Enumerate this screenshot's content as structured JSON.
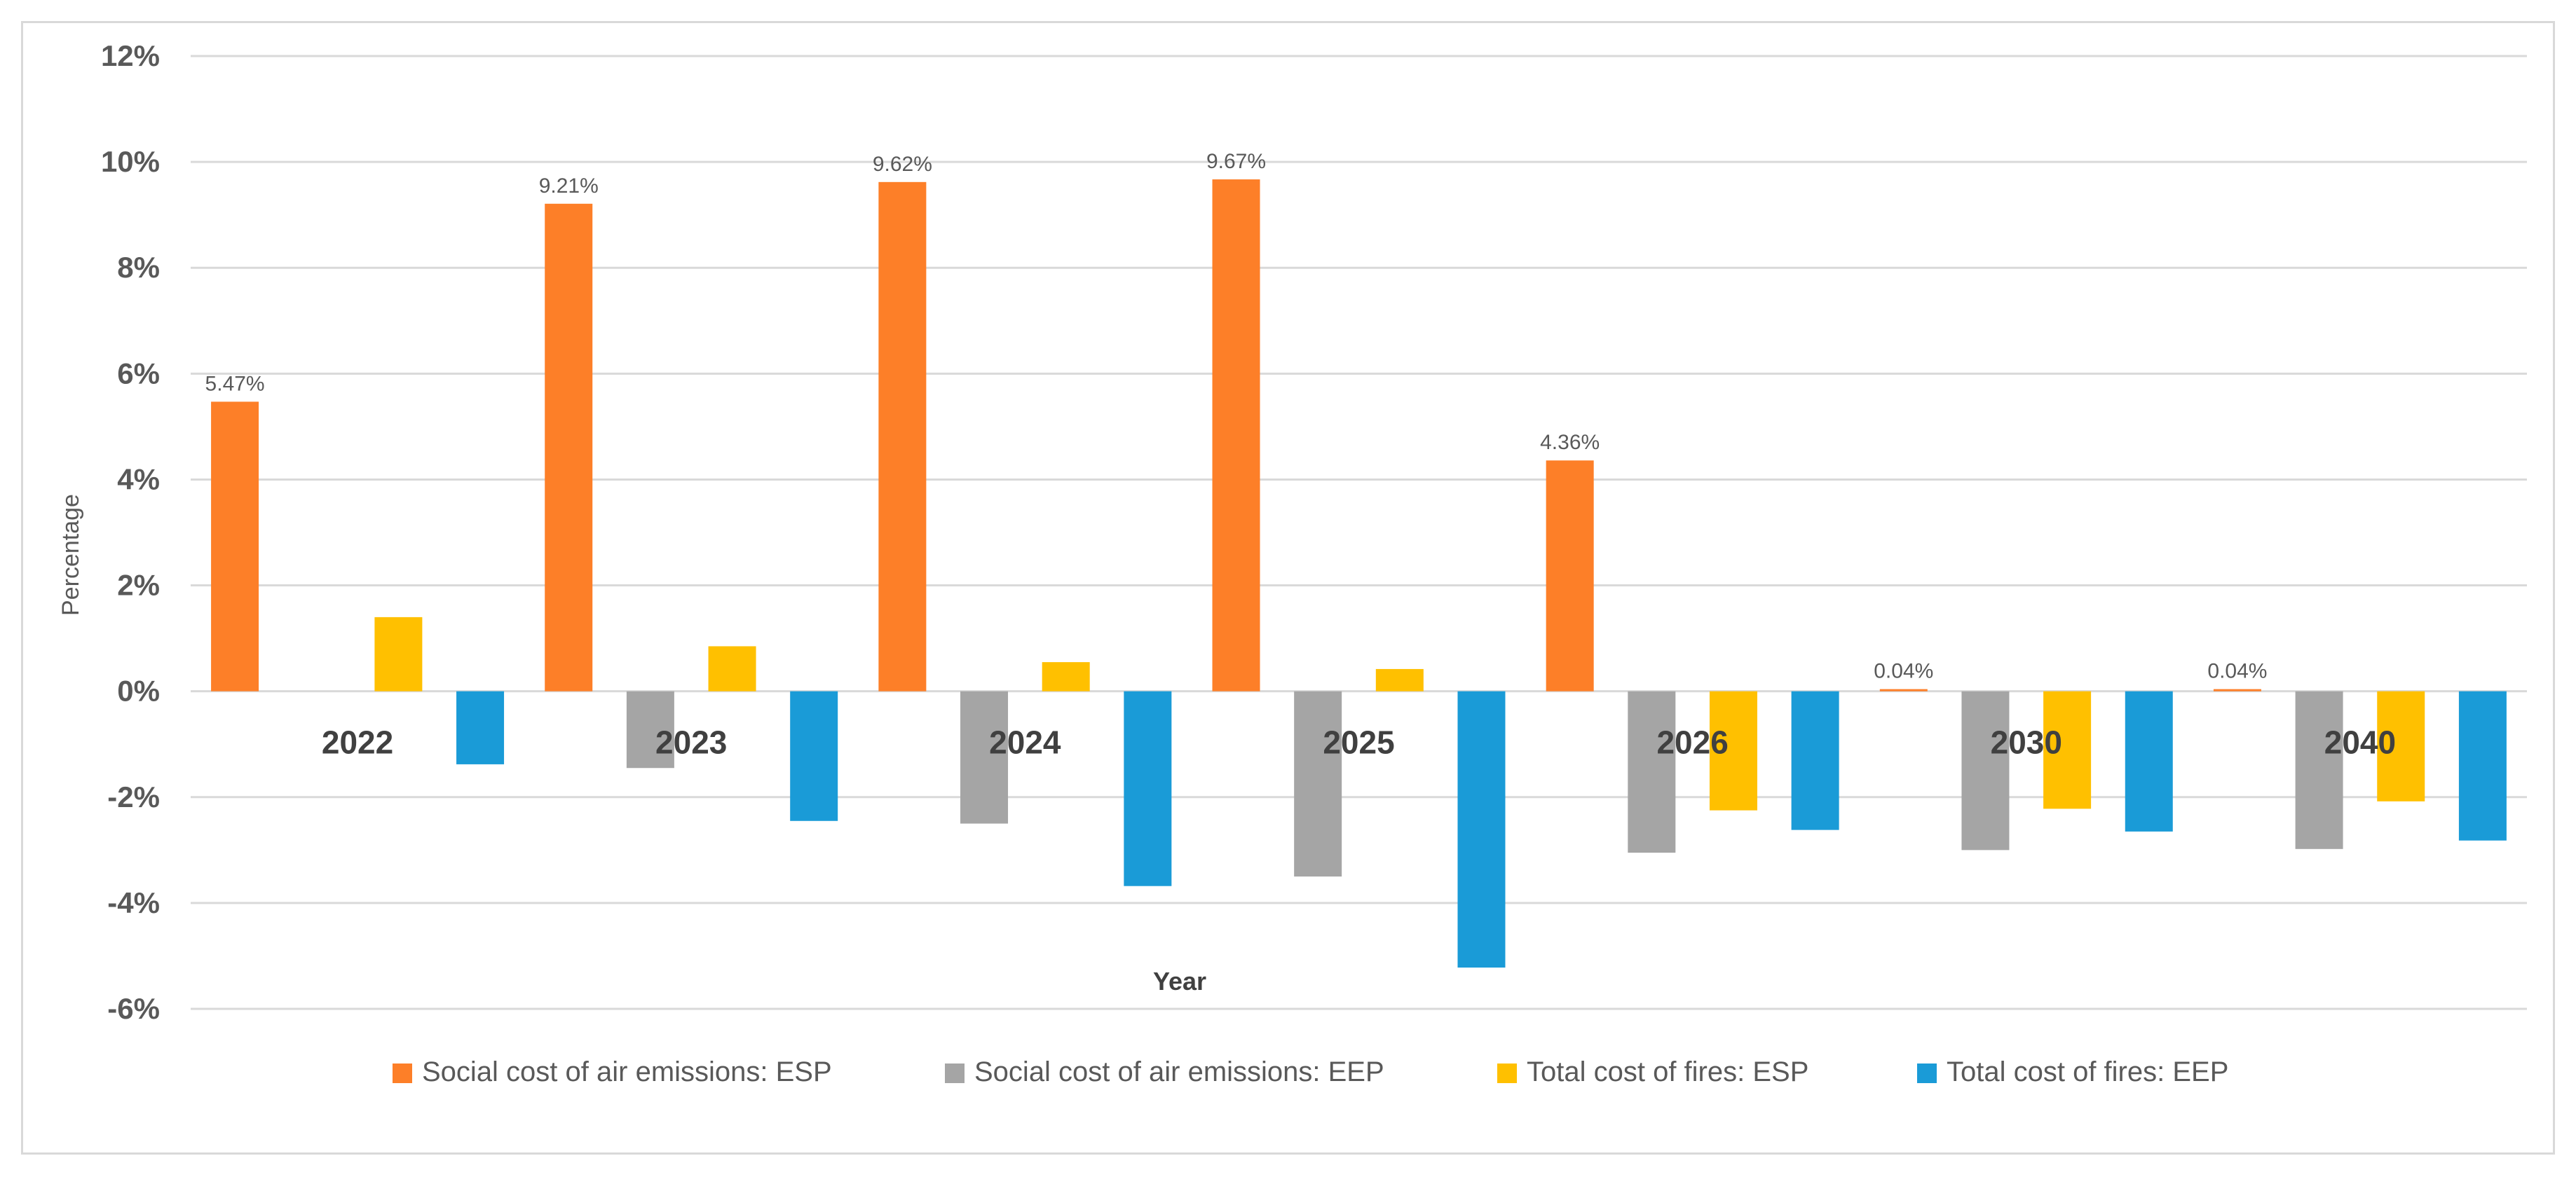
{
  "chart_data": {
    "type": "bar",
    "title": "",
    "xlabel": "Year",
    "ylabel": "Percentage",
    "ylim": [
      -6,
      12
    ],
    "yticks": [
      12,
      10,
      8,
      6,
      4,
      2,
      0,
      -2,
      -4,
      -6
    ],
    "ytick_labels": [
      "12%",
      "10%",
      "8%",
      "6%",
      "4%",
      "2%",
      "0%",
      "-2%",
      "-4%",
      "-6%"
    ],
    "grid": true,
    "legend_position": "bottom",
    "categories": [
      "2022",
      "2023",
      "2024",
      "2025",
      "2026",
      "2030",
      "2040"
    ],
    "series": [
      {
        "name": "Social cost of air emissions: ESP",
        "color": "#fd7f28",
        "values": [
          5.47,
          9.21,
          9.62,
          9.67,
          4.36,
          0.04,
          0.04
        ],
        "data_labels": [
          "5.47%",
          "9.21%",
          "9.62%",
          "9.67%",
          "4.36%",
          "0.04%",
          "0.04%"
        ]
      },
      {
        "name": "Social cost of air emissions: EEP",
        "color": "#a5a5a5",
        "values": [
          0,
          -1.45,
          -2.5,
          -3.5,
          -3.05,
          -3.0,
          -2.98
        ]
      },
      {
        "name": "Total cost of fires: ESP",
        "color": "#ffc000",
        "values": [
          1.4,
          0.85,
          0.55,
          0.42,
          -2.25,
          -2.22,
          -2.08
        ]
      },
      {
        "name": "Total cost of fires: EEP",
        "color": "#1a9bd7",
        "values": [
          -1.38,
          -2.45,
          -3.68,
          -5.22,
          -2.62,
          -2.65,
          -2.82
        ]
      }
    ]
  }
}
